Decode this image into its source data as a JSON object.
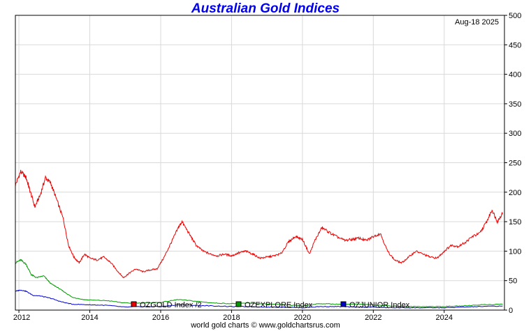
{
  "title": "Australian Gold Indices",
  "date": "Aug-18  2025",
  "footer": "world gold charts © www.goldchartsrus.com",
  "colors": {
    "title": "#0000ee",
    "ozgold": "#ee0000",
    "ozexplore": "#009900",
    "ozjunior": "#0000cc",
    "grid": "#d9d9d9"
  },
  "chart_data": {
    "type": "line",
    "xlim": [
      2011.9,
      2025.7
    ],
    "ylim": [
      0,
      500
    ],
    "y_ticks": [
      0,
      50,
      100,
      150,
      200,
      250,
      300,
      350,
      400,
      450,
      500
    ],
    "x_ticks": [
      2012,
      2014,
      2016,
      2018,
      2020,
      2022,
      2024
    ],
    "grid": true,
    "y_axis_side": "right",
    "legend_position": "bottom-center",
    "series": [
      {
        "name": "OZGOLD Index /2",
        "color": "#ee0000",
        "points": [
          [
            2011.9,
            212
          ],
          [
            2012.05,
            235
          ],
          [
            2012.2,
            225
          ],
          [
            2012.3,
            205
          ],
          [
            2012.45,
            175
          ],
          [
            2012.6,
            195
          ],
          [
            2012.75,
            225
          ],
          [
            2012.9,
            215
          ],
          [
            2013.05,
            190
          ],
          [
            2013.25,
            155
          ],
          [
            2013.4,
            110
          ],
          [
            2013.55,
            90
          ],
          [
            2013.7,
            80
          ],
          [
            2013.85,
            95
          ],
          [
            2014.0,
            88
          ],
          [
            2014.2,
            85
          ],
          [
            2014.4,
            90
          ],
          [
            2014.6,
            80
          ],
          [
            2014.8,
            65
          ],
          [
            2014.95,
            55
          ],
          [
            2015.1,
            62
          ],
          [
            2015.3,
            70
          ],
          [
            2015.5,
            65
          ],
          [
            2015.7,
            68
          ],
          [
            2015.9,
            70
          ],
          [
            2016.1,
            90
          ],
          [
            2016.3,
            115
          ],
          [
            2016.5,
            140
          ],
          [
            2016.6,
            150
          ],
          [
            2016.8,
            130
          ],
          [
            2017.0,
            110
          ],
          [
            2017.2,
            100
          ],
          [
            2017.4,
            95
          ],
          [
            2017.6,
            92
          ],
          [
            2017.8,
            95
          ],
          [
            2018.0,
            92
          ],
          [
            2018.2,
            97
          ],
          [
            2018.4,
            100
          ],
          [
            2018.6,
            95
          ],
          [
            2018.8,
            88
          ],
          [
            2019.0,
            90
          ],
          [
            2019.2,
            92
          ],
          [
            2019.4,
            96
          ],
          [
            2019.6,
            115
          ],
          [
            2019.8,
            125
          ],
          [
            2020.0,
            120
          ],
          [
            2020.2,
            95
          ],
          [
            2020.35,
            118
          ],
          [
            2020.55,
            140
          ],
          [
            2020.75,
            132
          ],
          [
            2020.95,
            125
          ],
          [
            2021.2,
            118
          ],
          [
            2021.4,
            120
          ],
          [
            2021.6,
            122
          ],
          [
            2021.8,
            118
          ],
          [
            2022.0,
            125
          ],
          [
            2022.2,
            130
          ],
          [
            2022.4,
            100
          ],
          [
            2022.6,
            85
          ],
          [
            2022.8,
            80
          ],
          [
            2023.0,
            90
          ],
          [
            2023.2,
            100
          ],
          [
            2023.4,
            95
          ],
          [
            2023.6,
            90
          ],
          [
            2023.8,
            88
          ],
          [
            2024.0,
            100
          ],
          [
            2024.2,
            110
          ],
          [
            2024.4,
            108
          ],
          [
            2024.6,
            115
          ],
          [
            2024.8,
            125
          ],
          [
            2025.0,
            130
          ],
          [
            2025.2,
            150
          ],
          [
            2025.35,
            170
          ],
          [
            2025.5,
            150
          ],
          [
            2025.65,
            165
          ]
        ]
      },
      {
        "name": "OZEXPLORE Index",
        "color": "#009900",
        "points": [
          [
            2011.9,
            80
          ],
          [
            2012.05,
            85
          ],
          [
            2012.2,
            78
          ],
          [
            2012.35,
            60
          ],
          [
            2012.5,
            55
          ],
          [
            2012.7,
            58
          ],
          [
            2012.9,
            45
          ],
          [
            2013.1,
            38
          ],
          [
            2013.3,
            30
          ],
          [
            2013.5,
            22
          ],
          [
            2013.8,
            18
          ],
          [
            2014.0,
            17
          ],
          [
            2014.5,
            16
          ],
          [
            2015.0,
            12
          ],
          [
            2015.5,
            12
          ],
          [
            2016.0,
            13
          ],
          [
            2016.5,
            18
          ],
          [
            2017.0,
            15
          ],
          [
            2017.5,
            12
          ],
          [
            2018.0,
            11
          ],
          [
            2018.5,
            12
          ],
          [
            2019.0,
            10
          ],
          [
            2019.5,
            9
          ],
          [
            2020.0,
            7
          ],
          [
            2020.5,
            11
          ],
          [
            2021.0,
            10
          ],
          [
            2021.5,
            10
          ],
          [
            2022.0,
            9
          ],
          [
            2022.5,
            7
          ],
          [
            2023.0,
            6
          ],
          [
            2023.5,
            6
          ],
          [
            2024.0,
            6
          ],
          [
            2024.5,
            7
          ],
          [
            2025.0,
            9
          ],
          [
            2025.65,
            10
          ]
        ]
      },
      {
        "name": "OZJUNIOR Index",
        "color": "#0000cc",
        "points": [
          [
            2011.9,
            32
          ],
          [
            2012.05,
            34
          ],
          [
            2012.2,
            32
          ],
          [
            2012.4,
            25
          ],
          [
            2012.6,
            24
          ],
          [
            2012.9,
            20
          ],
          [
            2013.2,
            14
          ],
          [
            2013.5,
            10
          ],
          [
            2014.0,
            9
          ],
          [
            2014.5,
            8
          ],
          [
            2015.0,
            5
          ],
          [
            2015.5,
            6
          ],
          [
            2016.0,
            6
          ],
          [
            2016.5,
            9
          ],
          [
            2017.0,
            8
          ],
          [
            2017.5,
            7
          ],
          [
            2018.0,
            6
          ],
          [
            2018.5,
            6
          ],
          [
            2019.0,
            5
          ],
          [
            2019.5,
            5
          ],
          [
            2020.0,
            4
          ],
          [
            2020.5,
            6
          ],
          [
            2021.0,
            6
          ],
          [
            2021.5,
            5
          ],
          [
            2022.0,
            5
          ],
          [
            2022.5,
            4
          ],
          [
            2023.0,
            4
          ],
          [
            2023.5,
            4
          ],
          [
            2024.0,
            4
          ],
          [
            2024.5,
            5
          ],
          [
            2025.0,
            6
          ],
          [
            2025.65,
            7
          ]
        ]
      }
    ]
  }
}
